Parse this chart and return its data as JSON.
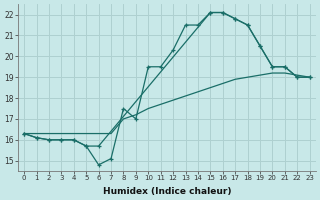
{
  "xlabel": "Humidex (Indice chaleur)",
  "bg_color": "#c8e8e8",
  "grid_color": "#aed0d0",
  "line_color": "#1a6e68",
  "xlim": [
    -0.5,
    23.5
  ],
  "ylim": [
    14.5,
    22.5
  ],
  "xticks": [
    0,
    1,
    2,
    3,
    4,
    5,
    6,
    7,
    8,
    9,
    10,
    11,
    12,
    13,
    14,
    15,
    16,
    17,
    18,
    19,
    20,
    21,
    22,
    23
  ],
  "yticks": [
    15,
    16,
    17,
    18,
    19,
    20,
    21,
    22
  ],
  "line1_x": [
    0,
    1,
    2,
    3,
    4,
    5,
    6,
    7,
    8,
    9,
    10,
    11,
    12,
    13,
    14,
    15,
    16,
    17,
    18,
    19,
    20,
    21,
    22,
    23
  ],
  "line1_y": [
    16.3,
    16.1,
    16.0,
    16.0,
    16.0,
    15.7,
    14.8,
    15.1,
    17.5,
    17.0,
    19.5,
    19.5,
    20.3,
    21.5,
    21.5,
    22.1,
    22.1,
    21.8,
    21.5,
    20.5,
    19.5,
    19.5,
    19.0,
    19.0
  ],
  "line2_x": [
    0,
    1,
    2,
    3,
    4,
    5,
    6,
    7,
    8,
    9,
    10,
    11,
    12,
    13,
    14,
    15,
    16,
    17,
    18,
    19,
    20,
    21,
    22,
    23
  ],
  "line2_y": [
    16.3,
    16.3,
    16.3,
    16.3,
    16.3,
    16.3,
    16.3,
    16.3,
    17.0,
    17.2,
    17.5,
    17.7,
    17.9,
    18.1,
    18.3,
    18.5,
    18.7,
    18.9,
    19.0,
    19.1,
    19.2,
    19.2,
    19.1,
    19.0
  ],
  "line3_x": [
    0,
    1,
    2,
    3,
    4,
    5,
    6,
    15,
    16,
    17,
    18,
    19,
    20,
    21,
    22,
    23
  ],
  "line3_y": [
    16.3,
    16.1,
    16.0,
    16.0,
    16.0,
    15.7,
    15.7,
    22.1,
    22.1,
    21.8,
    21.5,
    20.5,
    19.5,
    19.5,
    19.0,
    19.0
  ]
}
